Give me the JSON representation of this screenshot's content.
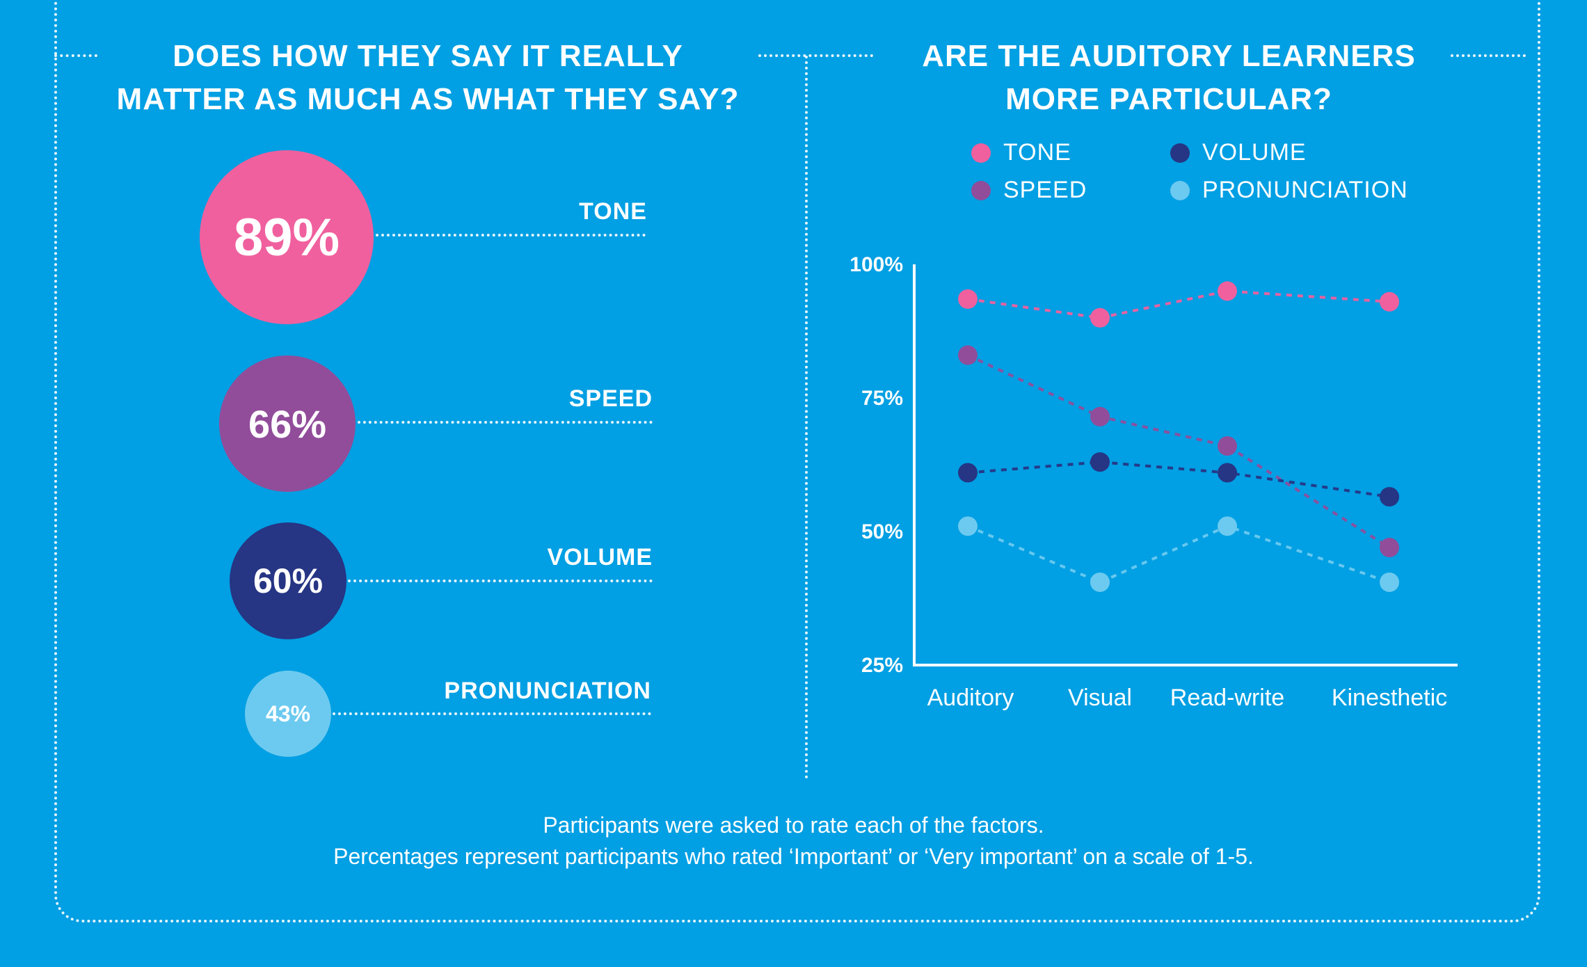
{
  "left": {
    "title_lines": [
      "DOES HOW THEY SAY IT REALLY",
      "MATTER AS MUCH AS WHAT THEY SAY?"
    ],
    "bubbles": [
      {
        "label": "TONE",
        "value_text": "89%",
        "color": "#f0609e"
      },
      {
        "label": "SPEED",
        "value_text": "66%",
        "color": "#914d9a"
      },
      {
        "label": "VOLUME",
        "value_text": "60%",
        "color": "#263584"
      },
      {
        "label": "PRONUNCIATION",
        "value_text": "43%",
        "color": "#6ccaf0"
      }
    ]
  },
  "right": {
    "title_lines": [
      "ARE THE AUDITORY LEARNERS",
      "MORE PARTICULAR?"
    ]
  },
  "chart_data": {
    "type": "line",
    "title": "ARE THE AUDITORY LEARNERS MORE PARTICULAR?",
    "categories": [
      "Auditory",
      "Visual",
      "Read-write",
      "Kinesthetic"
    ],
    "ylim": [
      25,
      100
    ],
    "yticks": [
      "100%",
      "75%",
      "50%",
      "25%"
    ],
    "ytick_values": [
      100,
      75,
      50,
      25
    ],
    "legend_position": "top",
    "grid": false,
    "series": [
      {
        "name": "TONE",
        "color": "#f0609e",
        "values": [
          93.5,
          90,
          95,
          93
        ]
      },
      {
        "name": "SPEED",
        "color": "#914d9a",
        "values": [
          83,
          71.5,
          66,
          47
        ]
      },
      {
        "name": "VOLUME",
        "color": "#263584",
        "values": [
          61,
          63,
          61,
          56.5
        ]
      },
      {
        "name": "PRONUNCIATION",
        "color": "#6ccaf0",
        "values": [
          51,
          40.5,
          51,
          40.5
        ]
      }
    ]
  },
  "footnote": {
    "line1": "Participants were asked to rate each of the factors.",
    "line2": "Percentages represent participants who rated ‘Important’ or ‘Very important’ on a scale of 1-5."
  }
}
